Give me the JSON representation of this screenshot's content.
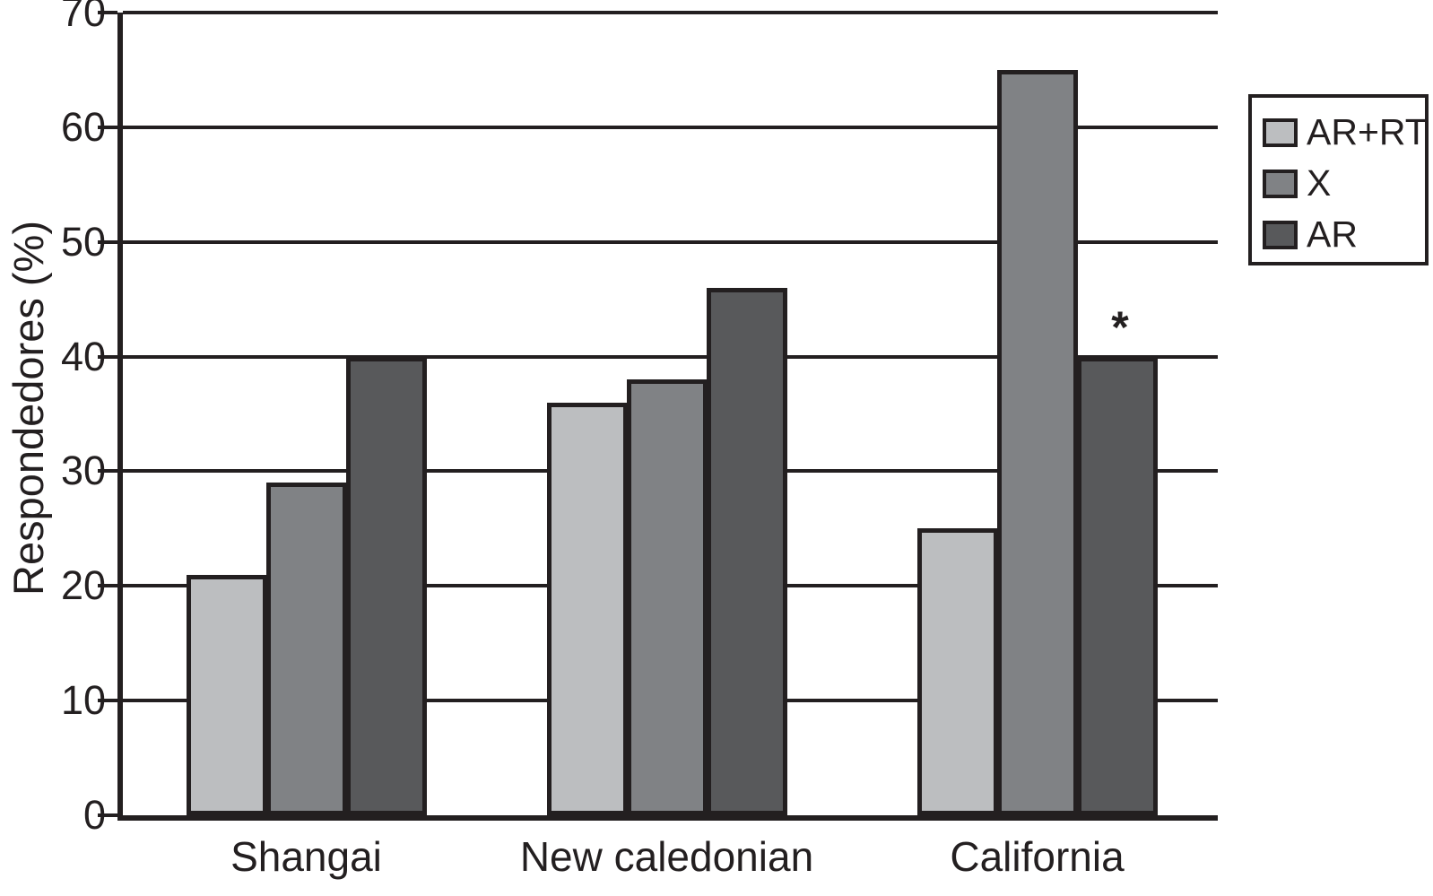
{
  "chart_data": {
    "type": "bar",
    "title": "",
    "ylabel": "Respondedores (%)",
    "xlabel": "",
    "ylim": [
      0,
      70
    ],
    "yticks": [
      0,
      10,
      20,
      30,
      40,
      50,
      60,
      70
    ],
    "grid": "horizontal",
    "grid_color": "#231f20",
    "axis_color": "#231f20",
    "background_color": "#ffffff",
    "legend_position": "outside-upper-right",
    "categories": [
      "Shangai",
      "New caledonian",
      "California"
    ],
    "series": [
      {
        "name": "AR+RT",
        "color": "#bcbec0",
        "values": [
          21,
          36,
          25
        ]
      },
      {
        "name": "X",
        "color": "#808285",
        "values": [
          29,
          38,
          65
        ]
      },
      {
        "name": "AR",
        "color": "#58595b",
        "values": [
          40,
          46,
          40
        ]
      }
    ],
    "annotations": [
      {
        "text": "*",
        "category": "California",
        "series": "AR",
        "above_value": 40
      }
    ]
  }
}
